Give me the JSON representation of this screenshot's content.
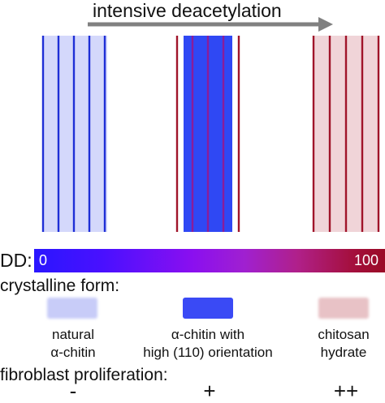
{
  "title": "intensive deacetylation",
  "dd_bar": {
    "label": "DD:",
    "min_label": "0",
    "max_label": "100",
    "colors": [
      "#2a16ff",
      "#8a0ff0",
      "#9a0a25"
    ]
  },
  "legend": {
    "heading": "crystalline form:",
    "items": [
      {
        "line1": "natural",
        "line2": "α-chitin",
        "color": "#c8ccf8"
      },
      {
        "line1": "α-chitin with",
        "line2": "high (110) orientation",
        "color": "#3a4af5"
      },
      {
        "line1": "chitosan",
        "line2": "hydrate",
        "color": "#e8c2c6"
      }
    ]
  },
  "proliferation": {
    "heading": "fibroblast proliferation:",
    "values": [
      "-",
      "+",
      "++"
    ]
  },
  "colors": {
    "blue_line": "#1f2fd6",
    "red_line": "#a0142a",
    "arrow": "#808080"
  }
}
